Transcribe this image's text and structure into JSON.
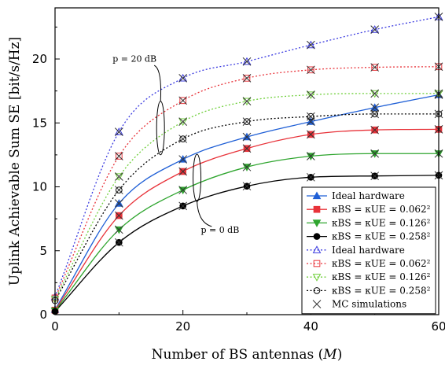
{
  "chart_data": {
    "type": "line",
    "xlabel": "Number of BS antennas",
    "xlabel_symbol": "M",
    "ylabel": "Uplink Achievable Sum SE [bit/s/Hz]",
    "xlim": [
      0,
      60
    ],
    "ylim": [
      0,
      24
    ],
    "xticks": [
      0,
      20,
      40,
      60
    ],
    "yticks": [
      0,
      5,
      10,
      15,
      20
    ],
    "grid": false,
    "legend_position": "bottom-right",
    "annotations": [
      {
        "text": "p = 20 dB",
        "group": "dashed"
      },
      {
        "text": "p = 0 dB",
        "group": "solid"
      }
    ],
    "series": [
      {
        "label": "Ideal hardware",
        "kind": "solid",
        "color": "#1f5fd6",
        "marker": "triangle-up",
        "x": [
          0,
          10,
          20,
          30,
          40,
          50,
          60
        ],
        "y": [
          0.4,
          8.7,
          12.15,
          13.9,
          15.1,
          16.2,
          17.2
        ]
      },
      {
        "label": "κBS = κUE = 0.062²",
        "kind": "solid",
        "color": "#e8333a",
        "marker": "square",
        "x": [
          0,
          10,
          20,
          30,
          40,
          50,
          60
        ],
        "y": [
          0.35,
          7.75,
          11.2,
          13.0,
          14.1,
          14.45,
          14.5
        ]
      },
      {
        "label": "κBS = κUE = 0.126²",
        "kind": "solid",
        "color": "#2ea52e",
        "marker": "triangle-down",
        "x": [
          0,
          10,
          20,
          30,
          40,
          50,
          60
        ],
        "y": [
          0.3,
          6.65,
          9.75,
          11.55,
          12.4,
          12.6,
          12.6
        ]
      },
      {
        "label": "κBS = κUE = 0.258²",
        "kind": "solid",
        "color": "#000000",
        "marker": "circle",
        "x": [
          0,
          10,
          20,
          30,
          40,
          50,
          60
        ],
        "y": [
          0.25,
          5.65,
          8.5,
          10.05,
          10.75,
          10.85,
          10.9
        ]
      },
      {
        "label": "Ideal hardware",
        "kind": "dashed",
        "color": "#3a3ae0",
        "marker": "triangle-up-open",
        "x": [
          0,
          10,
          20,
          30,
          40,
          50,
          60
        ],
        "y": [
          1.4,
          14.3,
          18.5,
          19.8,
          21.1,
          22.3,
          23.3
        ]
      },
      {
        "label": "κBS = κUE = 0.062²",
        "kind": "dashed",
        "color": "#e8333a",
        "marker": "square-open",
        "x": [
          0,
          10,
          20,
          30,
          40,
          50,
          60
        ],
        "y": [
          1.3,
          12.4,
          16.75,
          18.5,
          19.15,
          19.35,
          19.4
        ]
      },
      {
        "label": "κBS = κUE = 0.126²",
        "kind": "dashed",
        "color": "#6fcf3a",
        "marker": "triangle-down-open",
        "x": [
          0,
          10,
          20,
          30,
          40,
          50,
          60
        ],
        "y": [
          1.2,
          10.8,
          15.1,
          16.7,
          17.2,
          17.3,
          17.3
        ]
      },
      {
        "label": "κBS = κUE = 0.258²",
        "kind": "dashed",
        "color": "#000000",
        "marker": "circle-open",
        "x": [
          0,
          10,
          20,
          30,
          40,
          50,
          60
        ],
        "y": [
          1.1,
          9.75,
          13.75,
          15.1,
          15.5,
          15.7,
          15.7
        ]
      }
    ],
    "mc_label": "MC simulations"
  }
}
